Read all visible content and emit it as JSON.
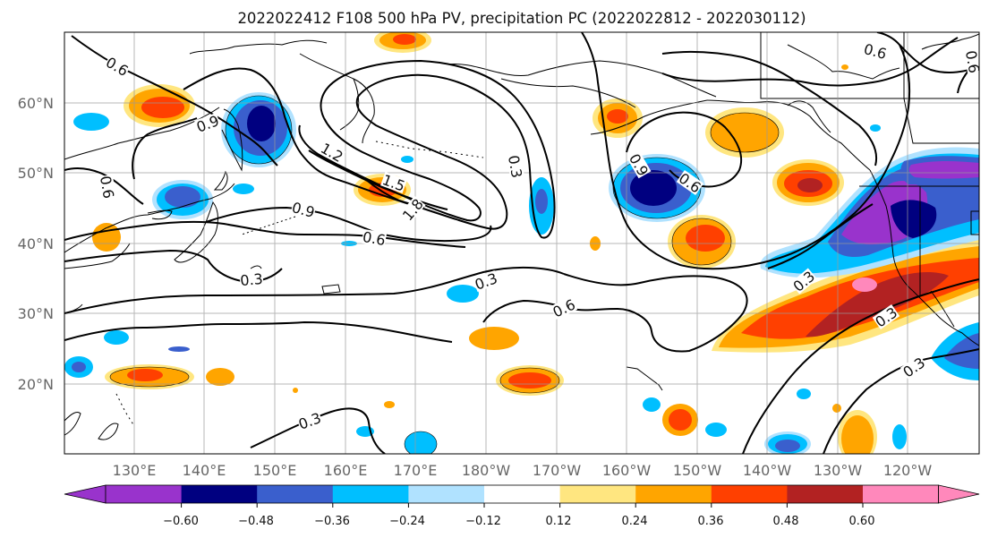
{
  "title": "2022022412 F108 500 hPa PV, precipitation PC (2022022812 - 2022030112)",
  "lat_labels": [
    "60°N",
    "50°N",
    "40°N",
    "30°N",
    "20°N"
  ],
  "lon_labels": [
    "130°E",
    "140°E",
    "150°E",
    "160°E",
    "170°E",
    "180°W",
    "170°W",
    "160°W",
    "150°W",
    "140°W",
    "130°W",
    "120°W"
  ],
  "colorbar": {
    "ticks": [
      "−0.60",
      "−0.48",
      "−0.36",
      "−0.24",
      "−0.12",
      "0.12",
      "0.24",
      "0.36",
      "0.48",
      "0.60"
    ],
    "colors": [
      "#9933cc",
      "#000080",
      "#3a5fcd",
      "#00bfff",
      "#b0e2ff",
      "#ffffff",
      "#ffe680",
      "#ffa500",
      "#ff4000",
      "#b22222",
      "#ff88bb"
    ]
  },
  "contour_labels": [
    "0.6",
    "0.9",
    "1.2",
    "1.5",
    "1.8",
    "0.6",
    "0.9",
    "0.3",
    "0.6",
    "0.3",
    "0.6",
    "0.3",
    "0.6",
    "0.9",
    "0.3",
    "0.3",
    "0.3",
    "0.3",
    "0.6",
    "0.6"
  ]
}
